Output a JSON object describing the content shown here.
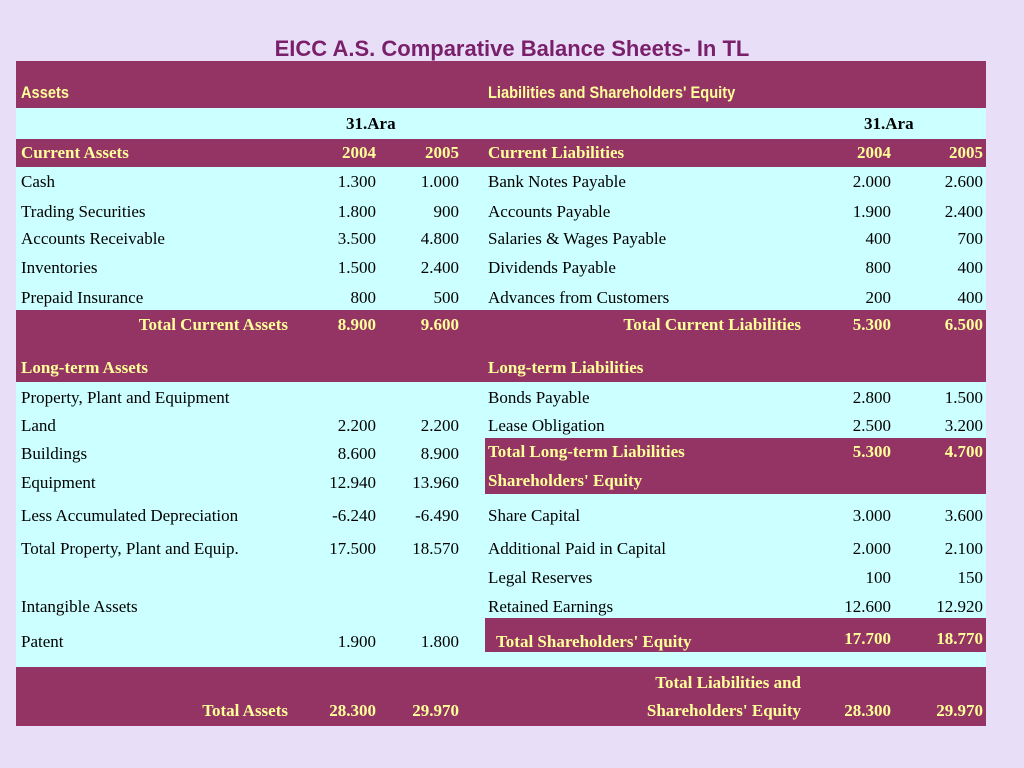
{
  "title": "EICC A.S. Comparative Balance Sheets- In TL",
  "headers": {
    "assets": "Assets",
    "liabilities": "Liabilities and Shareholders' Equity"
  },
  "date_label": "31.Ara",
  "years": [
    "2004",
    "2005"
  ],
  "assets": {
    "current_title": "Current Assets",
    "current_items": [
      {
        "label": "Cash",
        "v2004": "1.300",
        "v2005": "1.000"
      },
      {
        "label": "Trading Securities",
        "v2004": "1.800",
        "v2005": "900"
      },
      {
        "label": "Accounts Receivable",
        "v2004": "3.500",
        "v2005": "4.800"
      },
      {
        "label": "Inventories",
        "v2004": "1.500",
        "v2005": "2.400"
      },
      {
        "label": "Prepaid Insurance",
        "v2004": "800",
        "v2005": "500"
      }
    ],
    "total_current": {
      "label": "Total Current Assets",
      "v2004": "8.900",
      "v2005": "9.600"
    },
    "longterm_title": "Long-term Assets",
    "ppe_title": "Property, Plant and Equipment",
    "ppe_items": [
      {
        "label": "Land",
        "v2004": "2.200",
        "v2005": "2.200"
      },
      {
        "label": "Buildings",
        "v2004": "8.600",
        "v2005": "8.900"
      },
      {
        "label": "Equipment",
        "v2004": "12.940",
        "v2005": "13.960"
      },
      {
        "label": "Less Accumulated Depreciation",
        "v2004": "-6.240",
        "v2005": "-6.490"
      },
      {
        "label": "Total Property, Plant and Equip.",
        "v2004": "17.500",
        "v2005": "18.570"
      }
    ],
    "intangible_title": "Intangible Assets",
    "patent": {
      "label": "Patent",
      "v2004": "1.900",
      "v2005": "1.800"
    },
    "total_assets": {
      "label": "Total Assets",
      "v2004": "28.300",
      "v2005": "29.970"
    }
  },
  "liabilities": {
    "current_title": "Current Liabilities",
    "current_items": [
      {
        "label": "Bank Notes Payable",
        "v2004": "2.000",
        "v2005": "2.600"
      },
      {
        "label": "Accounts Payable",
        "v2004": "1.900",
        "v2005": "2.400"
      },
      {
        "label": "Salaries & Wages Payable",
        "v2004": "400",
        "v2005": "700"
      },
      {
        "label": "Dividends Payable",
        "v2004": "800",
        "v2005": "400"
      },
      {
        "label": "Advances from Customers",
        "v2004": "200",
        "v2005": "400"
      }
    ],
    "total_current": {
      "label": "Total Current Liabilities",
      "v2004": "5.300",
      "v2005": "6.500"
    },
    "longterm_title": "Long-term Liabilities",
    "longterm_items": [
      {
        "label": "Bonds Payable",
        "v2004": "2.800",
        "v2005": "1.500"
      },
      {
        "label": "Lease Obligation",
        "v2004": "2.500",
        "v2005": "3.200"
      }
    ],
    "total_longterm": {
      "label": "Total Long-term Liabilities",
      "v2004": "5.300",
      "v2005": "4.700"
    },
    "equity_title": "Shareholders' Equity",
    "equity_items": [
      {
        "label": "Share Capital",
        "v2004": "3.000",
        "v2005": "3.600"
      },
      {
        "label": "Additional Paid in Capital",
        "v2004": "2.000",
        "v2005": "2.100"
      },
      {
        "label": "Legal Reserves",
        "v2004": "100",
        "v2005": "150"
      },
      {
        "label": "Retained Earnings",
        "v2004": "12.600",
        "v2005": "12.920"
      }
    ],
    "total_equity": {
      "label": "Total Shareholders' Equity",
      "v2004": "17.700",
      "v2005": "18.770"
    },
    "total_liab_equity": {
      "label_line1": "Total Liabilities and",
      "label_line2": "Shareholders' Equity",
      "v2004": "28.300",
      "v2005": "29.970"
    }
  },
  "colors": {
    "band": "#943464",
    "body": "#ccffff",
    "header_text": "#ffff99",
    "page_bg": "#e8def8",
    "title": "#7a1f6a"
  }
}
